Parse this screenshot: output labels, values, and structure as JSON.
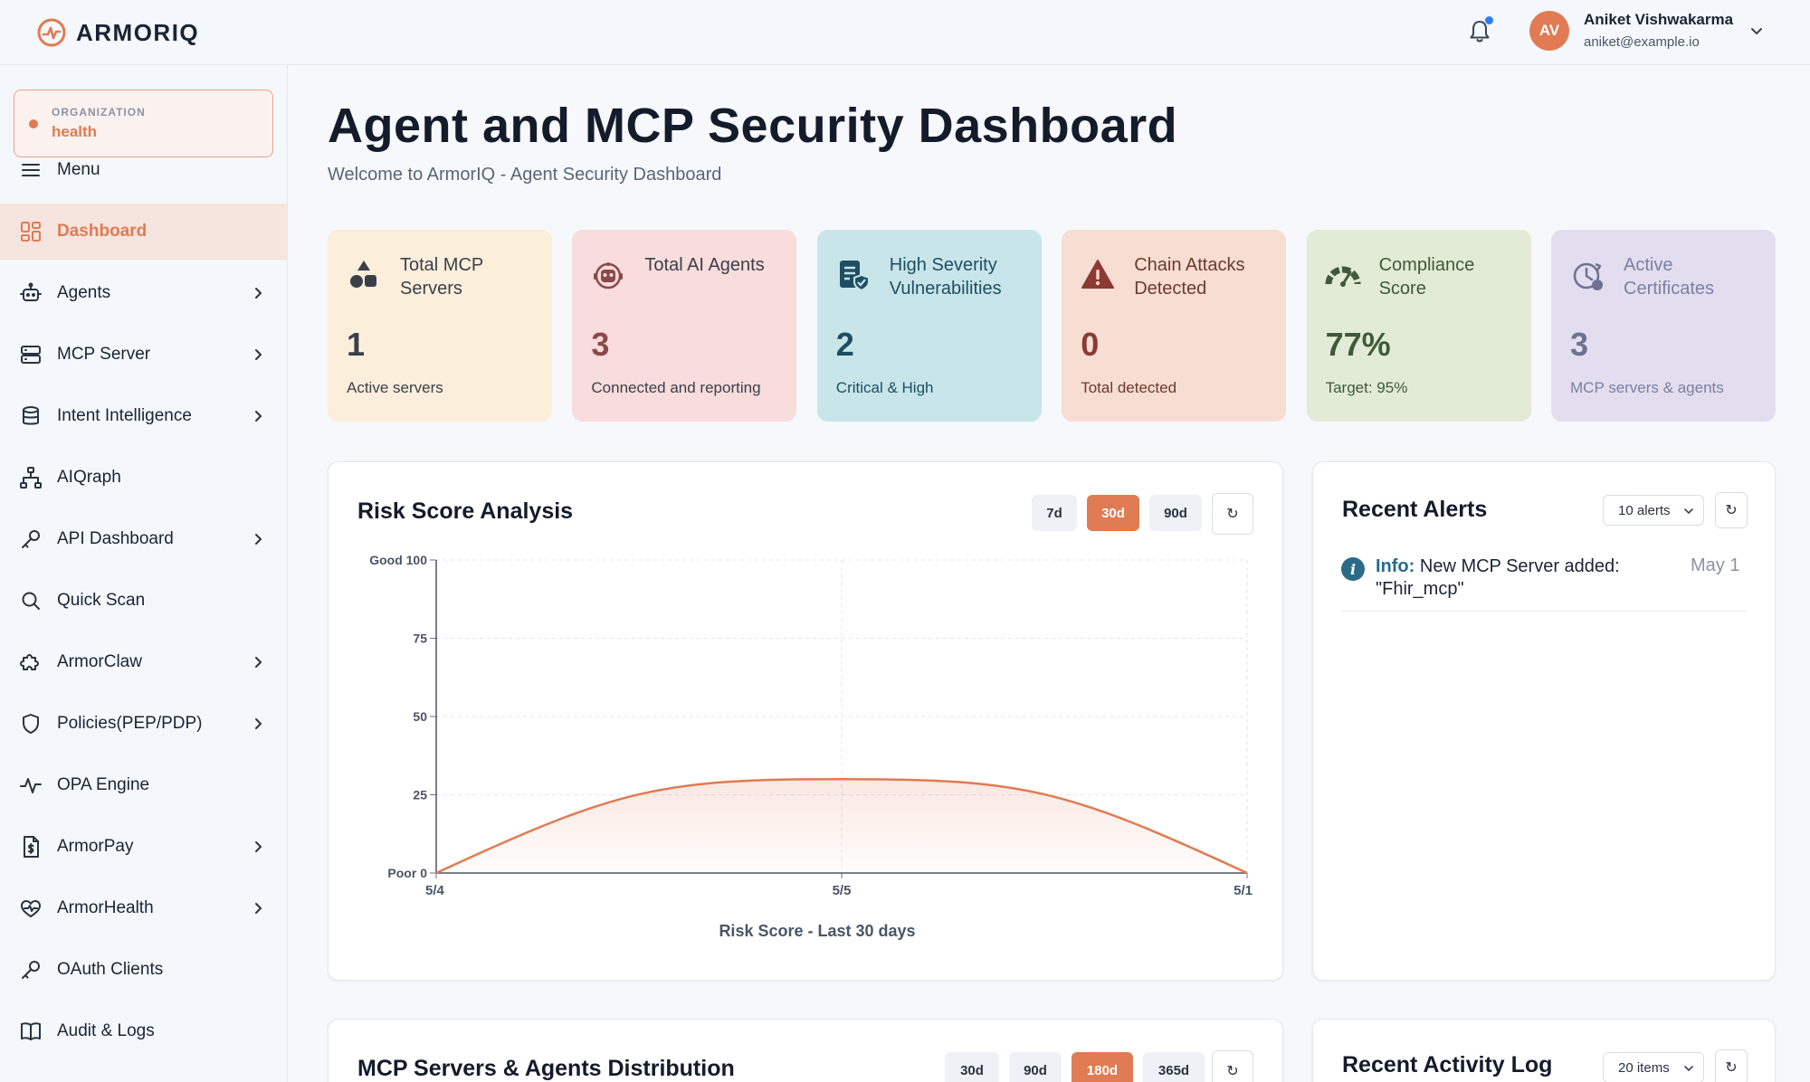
{
  "header": {
    "logo_text": "ARMORIQ",
    "user": {
      "initials": "AV",
      "name": "Aniket Vishwakarma",
      "email": "aniket@example.io"
    },
    "notification_unread": true
  },
  "sidebar": {
    "org_label": "ORGANIZATION",
    "org_value": "health",
    "items": [
      {
        "label": "Menu",
        "icon": "menu-icon",
        "chevron": false,
        "active": false
      },
      {
        "label": "Dashboard",
        "icon": "grid-icon",
        "chevron": false,
        "active": true
      },
      {
        "label": "Agents",
        "icon": "robot-icon",
        "chevron": true,
        "active": false
      },
      {
        "label": "MCP Server",
        "icon": "server-icon",
        "chevron": true,
        "active": false
      },
      {
        "label": "Intent Intelligence",
        "icon": "database-icon",
        "chevron": true,
        "active": false
      },
      {
        "label": "AIQraph",
        "icon": "graph-icon",
        "chevron": false,
        "active": false
      },
      {
        "label": "API Dashboard",
        "icon": "key-icon",
        "chevron": true,
        "active": false
      },
      {
        "label": "Quick Scan",
        "icon": "search-icon",
        "chevron": false,
        "active": false
      },
      {
        "label": "ArmorClaw",
        "icon": "puzzle-icon",
        "chevron": true,
        "active": false
      },
      {
        "label": "Policies(PEP/PDP)",
        "icon": "shield-icon",
        "chevron": true,
        "active": false
      },
      {
        "label": "OPA Engine",
        "icon": "activity-icon",
        "chevron": false,
        "active": false
      },
      {
        "label": "ArmorPay",
        "icon": "document-dollar-icon",
        "chevron": true,
        "active": false
      },
      {
        "label": "ArmorHealth",
        "icon": "heart-pulse-icon",
        "chevron": true,
        "active": false
      },
      {
        "label": "OAuth Clients",
        "icon": "key-icon",
        "chevron": false,
        "active": false
      },
      {
        "label": "Audit & Logs",
        "icon": "book-icon",
        "chevron": false,
        "active": false
      }
    ]
  },
  "main": {
    "title": "Agent and MCP Security Dashboard",
    "subtitle": "Welcome to ArmorIQ - Agent Security Dashboard",
    "cards": [
      {
        "title": "Total MCP Servers",
        "value": "1",
        "sub": "Active servers",
        "icon": "shapes-icon",
        "bg": "#fbeeda",
        "fg": "#3a3f4a",
        "accent": "#3a3f4a"
      },
      {
        "title": "Total AI Agents",
        "value": "3",
        "sub": "Connected and reporting",
        "icon": "robot-icon",
        "bg": "#f9dcdc",
        "fg": "#3a3f4a",
        "accent": "#8b4a4a"
      },
      {
        "title": "High Severity Vulnerabilities",
        "value": "2",
        "sub": "Critical & High",
        "icon": "shield-list-icon",
        "bg": "#c8e6ea",
        "fg": "#1f4e63",
        "accent": "#1f4e63"
      },
      {
        "title": "Chain Attacks Detected",
        "value": "0",
        "sub": "Total detected",
        "icon": "warning-icon",
        "bg": "#f7ddd2",
        "fg": "#6b3a2e",
        "accent": "#8b3a33"
      },
      {
        "title": "Compliance Score",
        "value": "77%",
        "sub": "Target: 95%",
        "icon": "gauge-icon",
        "bg": "#e2ebd6",
        "fg": "#3f5a3a",
        "accent": "#3f5a3a"
      },
      {
        "title": "Active Certificates",
        "value": "3",
        "sub": "MCP servers & agents",
        "icon": "clock-refresh-icon",
        "bg": "#e2def0",
        "fg": "#7b80a0",
        "accent": "#6d7290"
      }
    ],
    "risk_panel": {
      "title": "Risk Score Analysis",
      "ranges": [
        "7d",
        "30d",
        "90d"
      ],
      "selected_range": "30d",
      "refresh": "↻"
    },
    "alerts_panel": {
      "title": "Recent Alerts",
      "select_value": "10 alerts",
      "refresh": "↻",
      "alerts": [
        {
          "kind": "Info:",
          "text": "New MCP Server added: \"Fhir_mcp\"",
          "date": "May 1"
        }
      ]
    },
    "distribution_panel": {
      "title": "MCP Servers & Agents Distribution",
      "ranges": [
        "30d",
        "90d",
        "180d",
        "365d"
      ],
      "selected_range": "180d",
      "refresh": "↻"
    },
    "activity_panel": {
      "title": "Recent Activity Log",
      "select_value": "20 items",
      "refresh": "↻"
    }
  },
  "chart_data": {
    "type": "area",
    "x": [
      "5/4",
      "5/5",
      "5/1"
    ],
    "series": [
      {
        "values": [
          0,
          30,
          0
        ]
      }
    ],
    "ylim": [
      0,
      100
    ],
    "yticks": [
      {
        "value": 100,
        "label": "Good 100"
      },
      {
        "value": 75,
        "label": "75"
      },
      {
        "value": 50,
        "label": "50"
      },
      {
        "value": 25,
        "label": "25"
      },
      {
        "value": 0,
        "label": "Poor 0"
      }
    ],
    "xlabel": "Risk Score - Last 30 days",
    "grid": true,
    "line_color": "#e07b53"
  }
}
